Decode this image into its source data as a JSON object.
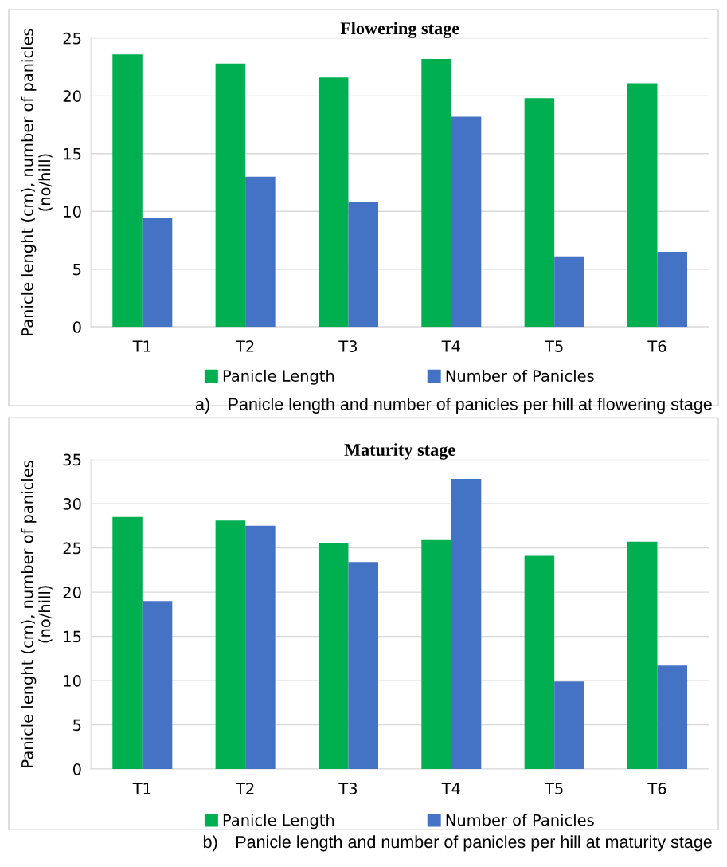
{
  "chart_data": [
    {
      "type": "bar",
      "title": "Flowering stage",
      "ylabel": "Panicle lenght (cm), number of panicles\n(no/hill)",
      "categories": [
        "T1",
        "T2",
        "T3",
        "T4",
        "T5",
        "T6"
      ],
      "series": [
        {
          "name": "Panicle Length",
          "color": "#00b050",
          "values": [
            23.6,
            22.8,
            21.6,
            23.2,
            19.8,
            21.1
          ]
        },
        {
          "name": "Number of Panicles",
          "color": "#4472c4",
          "values": [
            9.4,
            13.0,
            10.8,
            18.2,
            6.1,
            6.5
          ]
        }
      ],
      "ylim": [
        0,
        25
      ],
      "yticks": [
        0,
        5,
        10,
        15,
        20,
        25
      ],
      "grid": "y",
      "legend": "bottom",
      "annotations": [
        "a) Panicle length and number of panicles per hill at flowering stage"
      ]
    },
    {
      "type": "bar",
      "title": "Maturity stage",
      "ylabel": "Panicle lenght (cm), number of panicles\n(no/hill)",
      "categories": [
        "T1",
        "T2",
        "T3",
        "T4",
        "T5",
        "T6"
      ],
      "series": [
        {
          "name": "Panicle Length",
          "color": "#00b050",
          "values": [
            28.5,
            28.1,
            25.5,
            25.9,
            24.1,
            25.7
          ]
        },
        {
          "name": "Number of Panicles",
          "color": "#4472c4",
          "values": [
            19.0,
            27.5,
            23.4,
            32.8,
            9.9,
            11.7
          ]
        }
      ],
      "ylim": [
        0,
        35
      ],
      "yticks": [
        0,
        5,
        10,
        15,
        20,
        25,
        30,
        35
      ],
      "grid": "y",
      "legend": "bottom",
      "annotations": [
        "b) Panicle length and number of panicles per hill at maturity stage"
      ]
    }
  ]
}
